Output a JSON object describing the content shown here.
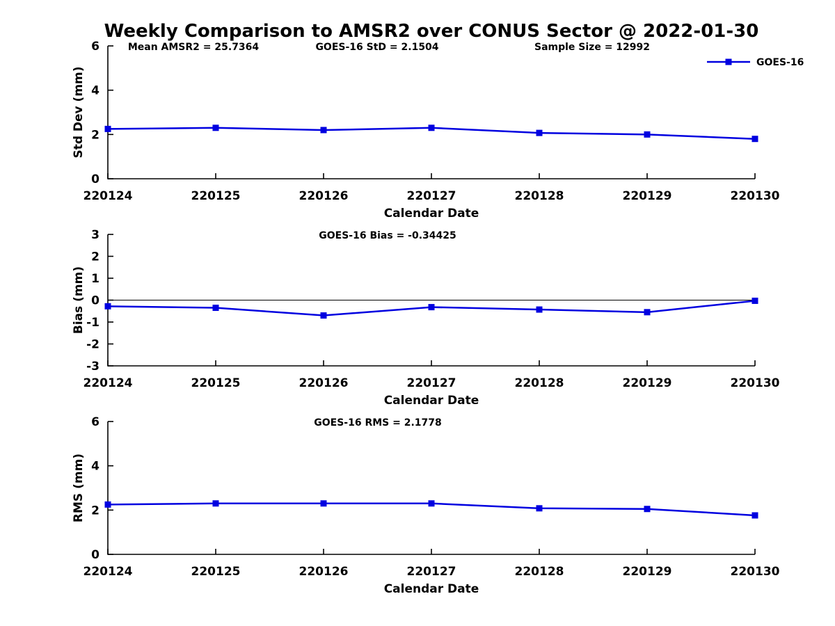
{
  "title": "Weekly Comparison to AMSR2 over CONUS Sector @ 2022-01-30",
  "colors": {
    "series": "#0000E0",
    "axis": "#000000",
    "background": "#ffffff"
  },
  "legend": {
    "label": "GOES-16",
    "position": "top-right"
  },
  "chart_data": [
    {
      "id": "stddev",
      "type": "line",
      "xlabel": "Calendar Date",
      "ylabel": "Std Dev (mm)",
      "ylim": [
        0,
        6
      ],
      "yticks": [
        0,
        2,
        4,
        6
      ],
      "grid": false,
      "zero_line": false,
      "show_legend": true,
      "categories": [
        "220124",
        "220125",
        "220126",
        "220127",
        "220128",
        "220129",
        "220130"
      ],
      "series": [
        {
          "name": "GOES-16",
          "marker": "square",
          "values": [
            2.25,
            2.3,
            2.2,
            2.3,
            2.07,
            2.0,
            1.8
          ]
        }
      ],
      "annotations": [
        {
          "text": "Mean AMSR2 = 25.7364",
          "x": 278
        },
        {
          "text": "GOES-16 StD = 2.1504",
          "x": 542
        },
        {
          "text": "Sample Size = 12992",
          "x": 851
        }
      ]
    },
    {
      "id": "bias",
      "type": "line",
      "xlabel": "Calendar Date",
      "ylabel": "Bias (mm)",
      "ylim": [
        -3,
        3
      ],
      "yticks": [
        -3,
        -2,
        -1,
        0,
        1,
        2,
        3
      ],
      "grid": false,
      "zero_line": true,
      "show_legend": false,
      "categories": [
        "220124",
        "220125",
        "220126",
        "220127",
        "220128",
        "220129",
        "220130"
      ],
      "series": [
        {
          "name": "GOES-16",
          "marker": "square",
          "values": [
            -0.28,
            -0.35,
            -0.7,
            -0.32,
            -0.43,
            -0.55,
            -0.03
          ]
        }
      ],
      "annotations": [
        {
          "text": "GOES-16 Bias  = -0.34425",
          "x": 557
        }
      ]
    },
    {
      "id": "rms",
      "type": "line",
      "xlabel": "Calendar Date",
      "ylabel": "RMS (mm)",
      "ylim": [
        0,
        6
      ],
      "yticks": [
        0,
        2,
        4,
        6
      ],
      "grid": false,
      "zero_line": false,
      "show_legend": false,
      "categories": [
        "220124",
        "220125",
        "220126",
        "220127",
        "220128",
        "220129",
        "220130"
      ],
      "series": [
        {
          "name": "GOES-16",
          "marker": "square",
          "values": [
            2.25,
            2.3,
            2.3,
            2.3,
            2.08,
            2.05,
            1.76
          ]
        }
      ],
      "annotations": [
        {
          "text": "GOES-16 RMS = 2.1778",
          "x": 543
        }
      ]
    }
  ]
}
